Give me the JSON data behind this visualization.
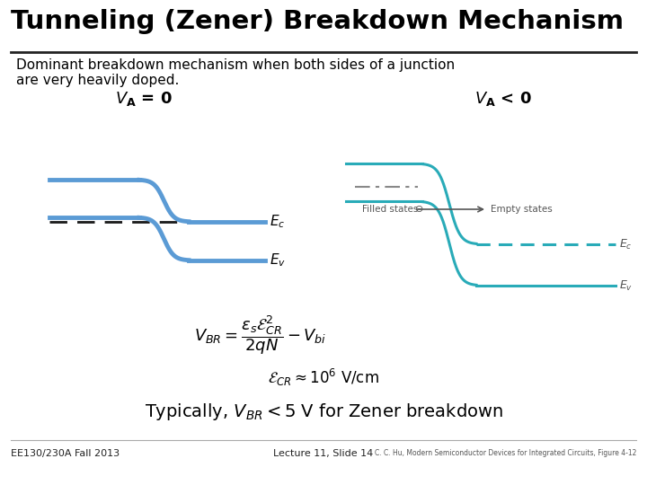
{
  "title": "Tunneling (Zener) Breakdown Mechanism",
  "subtitle_line1": "Dominant breakdown mechanism when both sides of a junction",
  "subtitle_line2": "are very heavily doped.",
  "bg_color": "#ffffff",
  "title_color": "#000000",
  "subtitle_color": "#000000",
  "diagram1_label": "$\\mathit{V}_\\mathbf{A} = \\mathbf{0}$",
  "diagram2_label": "$\\mathit{V}_\\mathbf{A} < \\mathbf{0}$",
  "Ec_label": "$E_c$",
  "Ev_label": "$E_v$",
  "filled_states": "Filled states",
  "empty_states": "Empty states",
  "formula1": "$V_{BR} = \\dfrac{\\varepsilon_s \\mathcal{E}_{CR}^2}{2qN} - V_{bi}$",
  "formula2": "$\\mathcal{E}_{CR} \\approx 10^6$ V/cm",
  "bottom_text": "Typically, $V_{BR} < 5$ V for Zener breakdown",
  "footer_left": "EE130/230A Fall 2013",
  "footer_center": "Lecture 11, Slide 14",
  "footer_right": "C. C. Hu, Modern Semiconductor Devices for Integrated Circuits, Figure 4-12",
  "blue_color": "#5B9BD5",
  "teal_color": "#29ABB8",
  "dashed_color": "#1a1a1a"
}
